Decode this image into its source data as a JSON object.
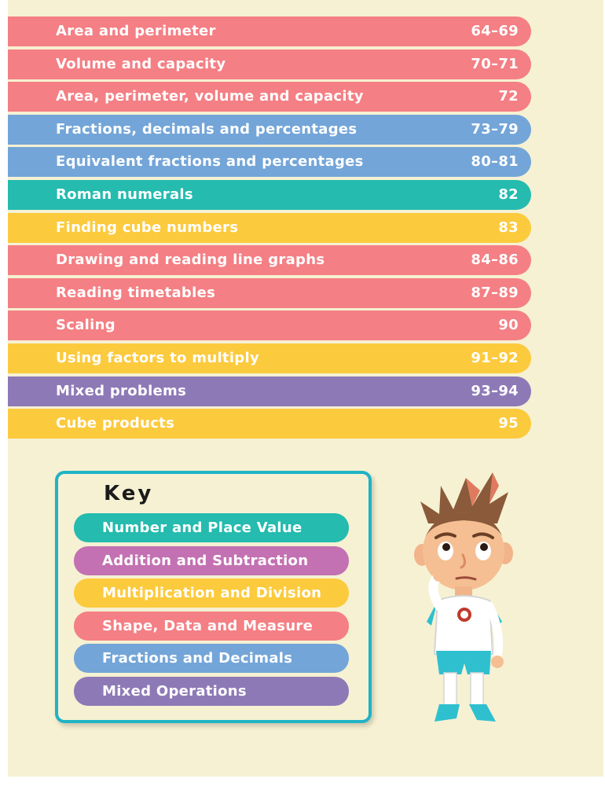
{
  "colors": {
    "page_background": "#f6f1d3",
    "shape_data_measure": "#f47f84",
    "fractions_decimals": "#73a5d8",
    "number_place_value": "#25bbaf",
    "multiplication_division": "#fcca3d",
    "mixed_operations": "#8e79b7",
    "addition_subtraction": "#c371b2",
    "key_border": "#1fb3c5"
  },
  "toc": [
    {
      "title": "Area and perimeter",
      "pages": "64–69",
      "color": "#f47f84"
    },
    {
      "title": "Volume and capacity",
      "pages": "70–71",
      "color": "#f47f84"
    },
    {
      "title": "Area, perimeter, volume and capacity",
      "pages": "72",
      "color": "#f47f84"
    },
    {
      "title": "Fractions, decimals and percentages",
      "pages": "73–79",
      "color": "#73a5d8"
    },
    {
      "title": "Equivalent fractions and percentages",
      "pages": "80–81",
      "color": "#73a5d8"
    },
    {
      "title": "Roman numerals",
      "pages": "82",
      "color": "#25bbaf"
    },
    {
      "title": "Finding cube numbers",
      "pages": "83",
      "color": "#fcca3d"
    },
    {
      "title": "Drawing and reading line graphs",
      "pages": "84–86",
      "color": "#f47f84"
    },
    {
      "title": "Reading timetables",
      "pages": "87–89",
      "color": "#f47f84"
    },
    {
      "title": "Scaling",
      "pages": "90",
      "color": "#f47f84"
    },
    {
      "title": "Using factors to multiply",
      "pages": "91–92",
      "color": "#fcca3d"
    },
    {
      "title": "Mixed problems",
      "pages": "93–94",
      "color": "#8e79b7"
    },
    {
      "title": "Cube products",
      "pages": "95",
      "color": "#fcca3d"
    }
  ],
  "key": {
    "title": "Key",
    "items": [
      {
        "label": "Number and Place Value",
        "color": "#25bbaf"
      },
      {
        "label": "Addition and Subtraction",
        "color": "#c371b2"
      },
      {
        "label": "Multiplication and Division",
        "color": "#fcca3d"
      },
      {
        "label": "Shape, Data and Measure",
        "color": "#f47f84"
      },
      {
        "label": "Fractions and Decimals",
        "color": "#73a5d8"
      },
      {
        "label": "Mixed Operations",
        "color": "#8e79b7"
      }
    ]
  },
  "illustration": {
    "icon": "thinking-boy-character-icon"
  }
}
